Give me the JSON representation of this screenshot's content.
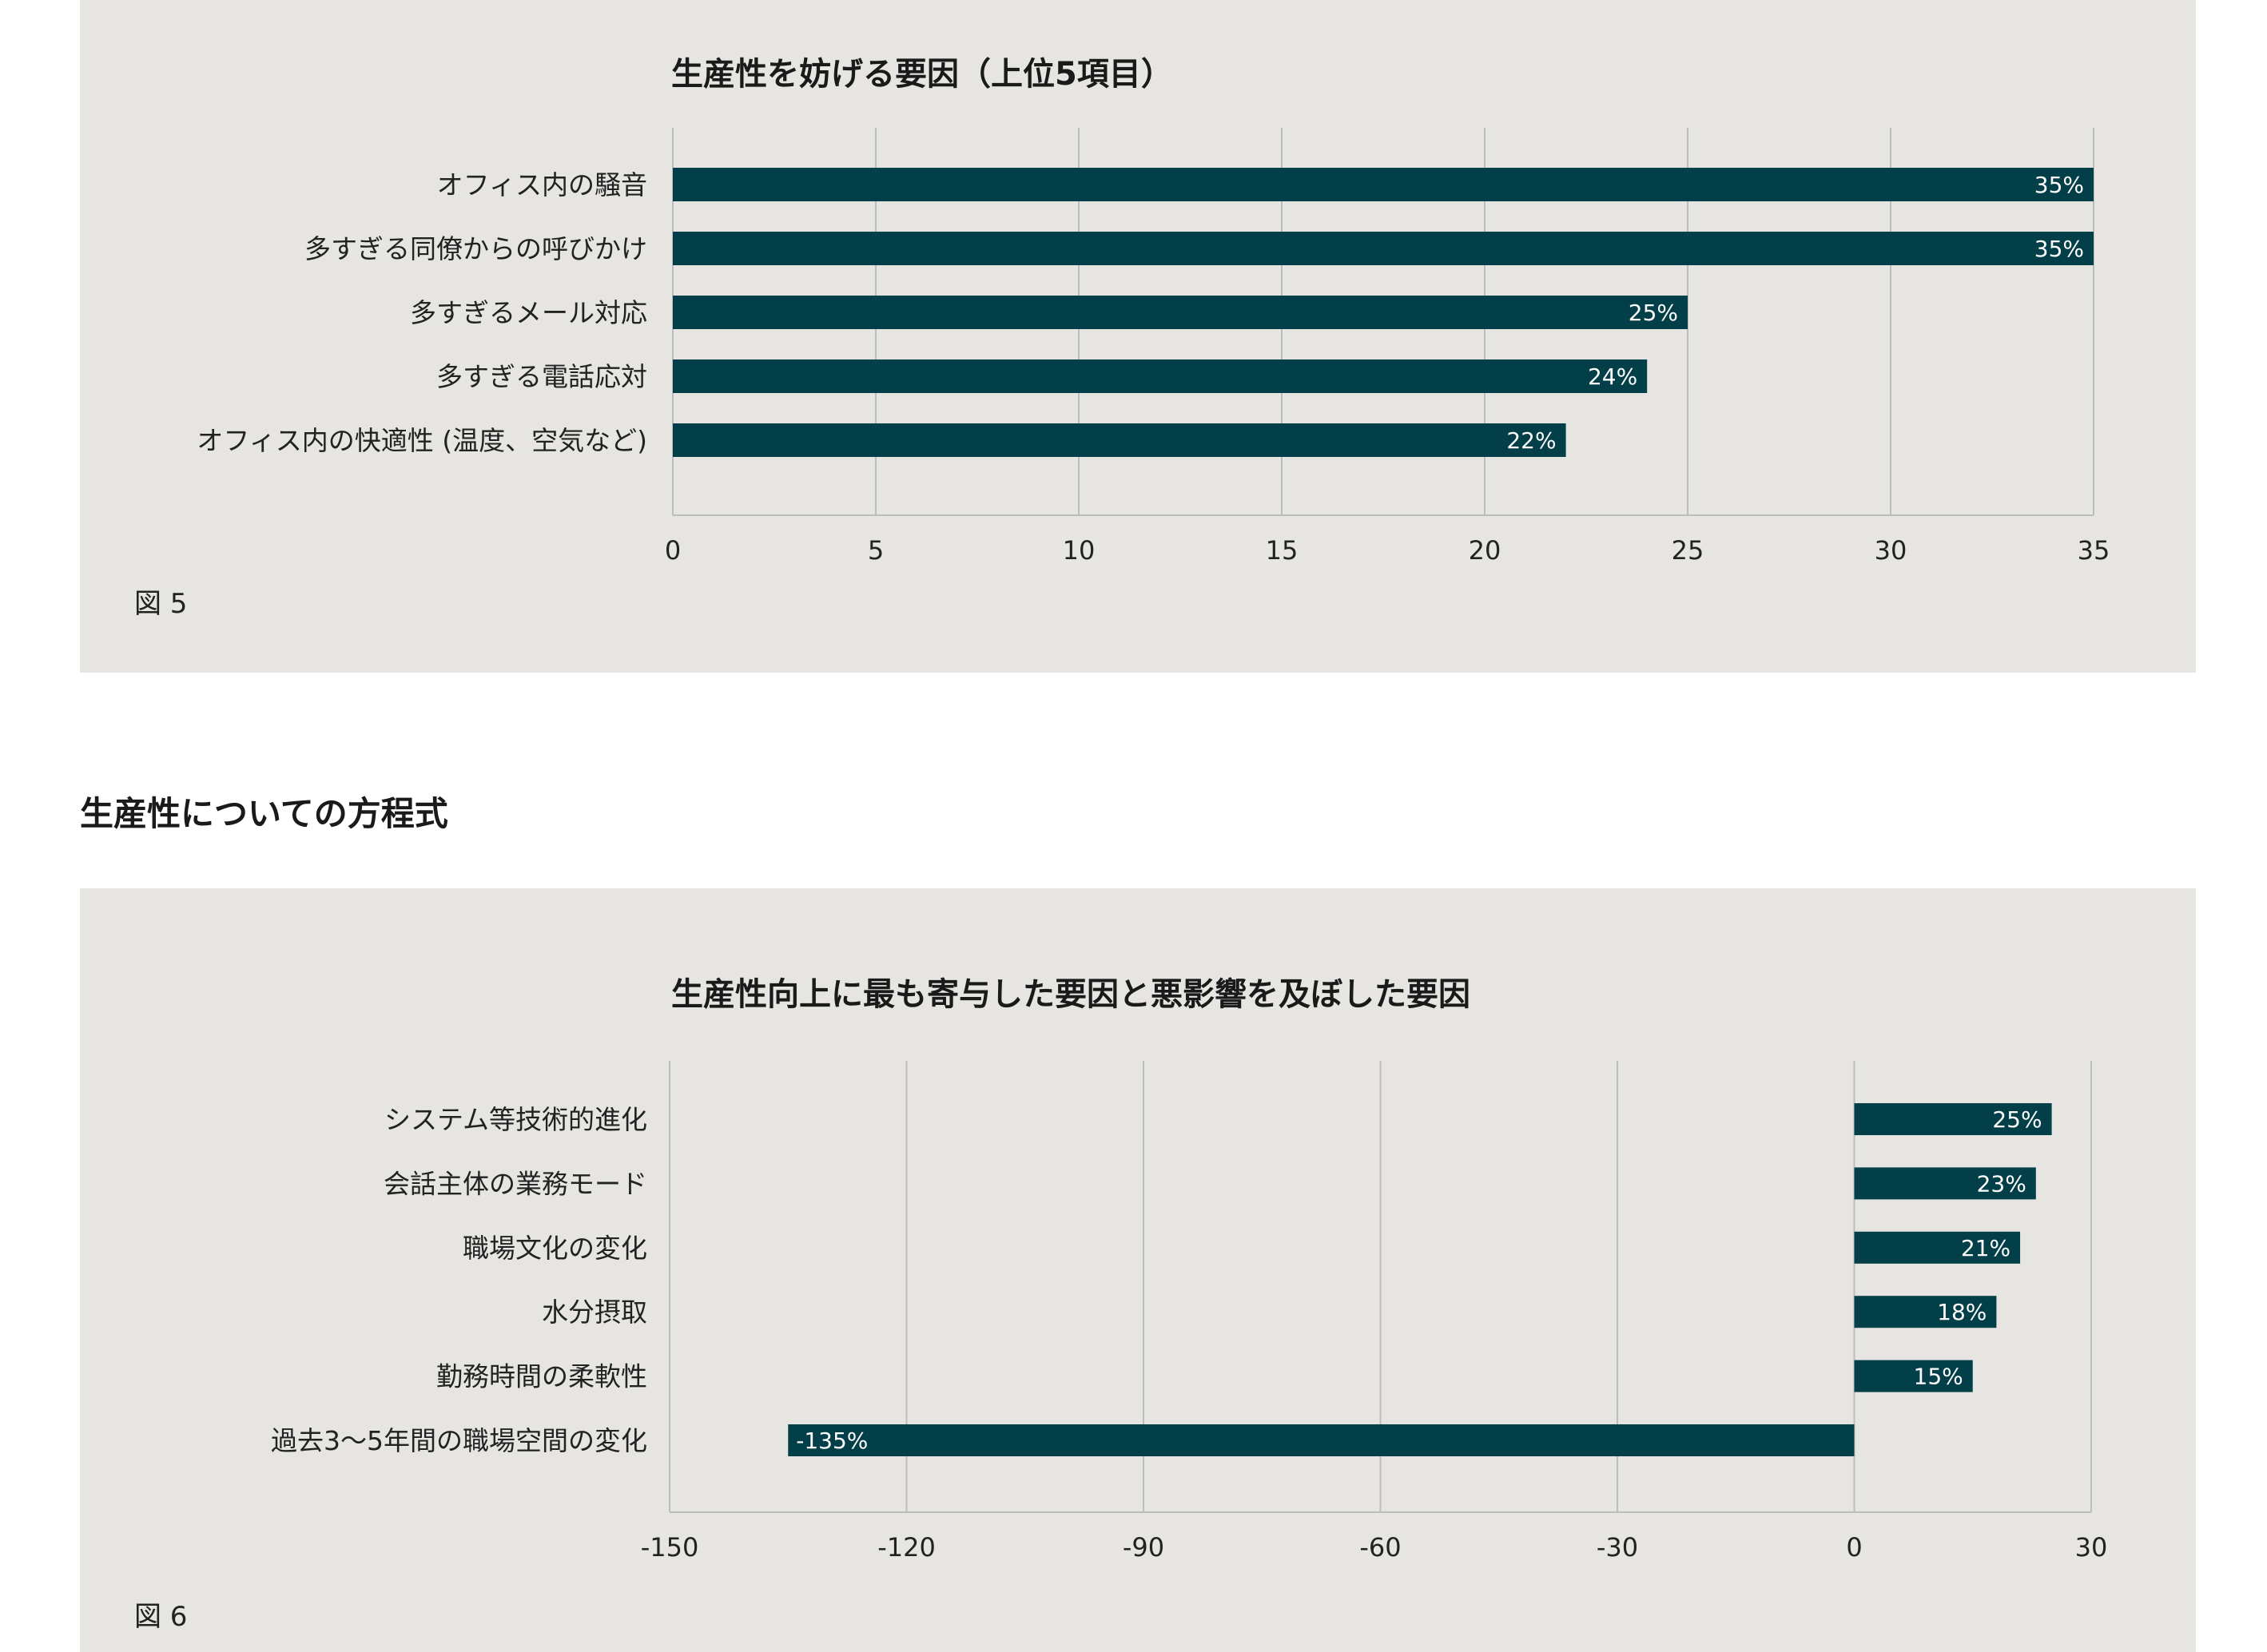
{
  "figures": [
    {
      "caption": "図 5",
      "chart_data": {
        "type": "bar",
        "orientation": "horizontal",
        "title": "生産性を妨げる要因（上位5項目）",
        "categories": [
          "オフィス内の騒音",
          "多すぎる同僚からの呼びかけ",
          "多すぎるメール対応",
          "多すぎる電話応対",
          "オフィス内の快適性 (温度、空気など)"
        ],
        "values": [
          35,
          35,
          25,
          24,
          22
        ],
        "value_labels": [
          "35%",
          "35%",
          "25%",
          "24%",
          "22%"
        ],
        "xlim": [
          0,
          35
        ],
        "xticks": [
          0,
          5,
          10,
          15,
          20,
          25,
          30,
          35
        ],
        "tick_labels": [
          "0",
          "5",
          "10",
          "15",
          "20",
          "25",
          "30",
          "35"
        ],
        "grid": "vertical",
        "bar_color": "#033f48"
      }
    },
    {
      "caption": "図 6",
      "chart_data": {
        "type": "bar",
        "orientation": "horizontal",
        "title": "生産性向上に最も寄与した要因と悪影響を及ぼした要因",
        "categories": [
          "システム等技術的進化",
          "会話主体の業務モード",
          "職場文化の変化",
          "水分摂取",
          "勤務時間の柔軟性",
          "過去3〜5年間の職場空間の変化"
        ],
        "values": [
          25,
          23,
          21,
          18,
          15,
          -135
        ],
        "value_labels": [
          "25%",
          "23%",
          "21%",
          "18%",
          "15%",
          "-135%"
        ],
        "xlim": [
          -150,
          30
        ],
        "xticks": [
          -150,
          -120,
          -90,
          -60,
          -30,
          0,
          30
        ],
        "tick_labels": [
          "-150",
          "-120",
          "-90",
          "-60",
          "-30",
          "0",
          "30"
        ],
        "grid": "vertical",
        "bar_color": "#033f48"
      }
    }
  ],
  "section_heading": "生産性についての方程式"
}
